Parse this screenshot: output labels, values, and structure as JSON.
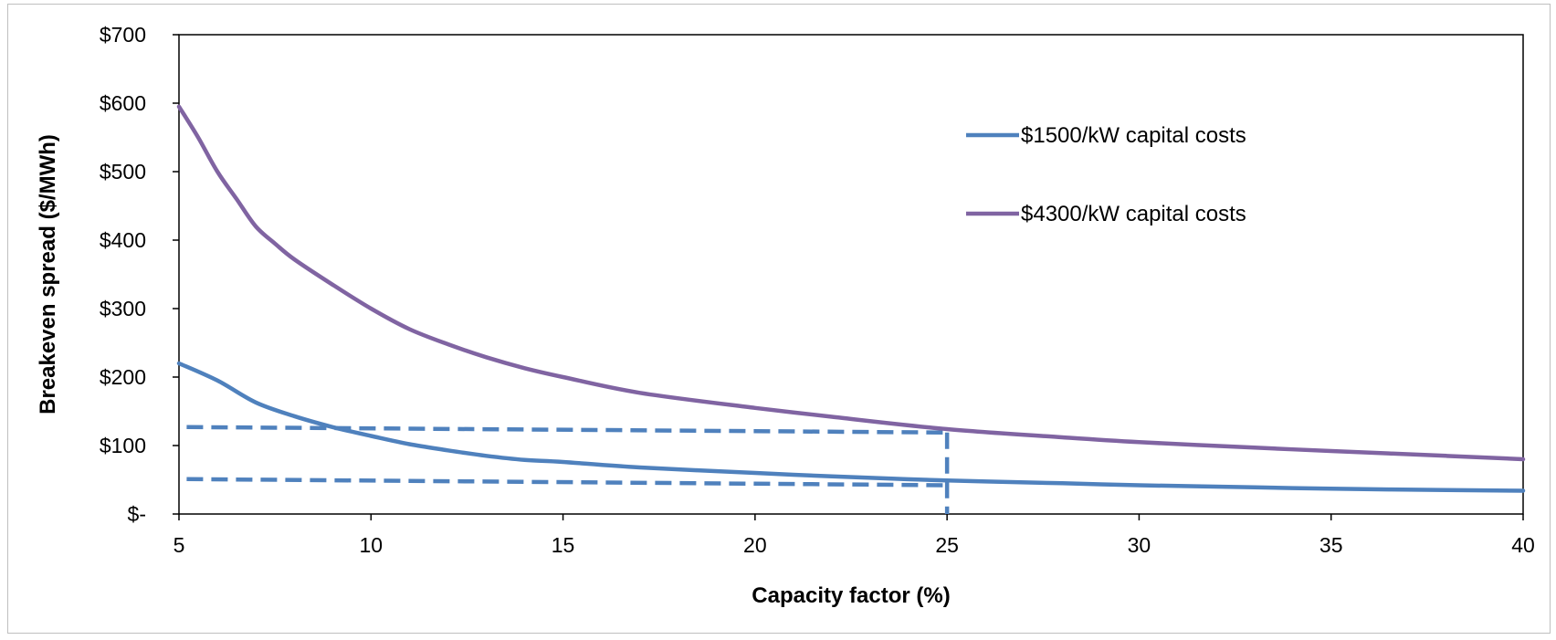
{
  "chart_data": {
    "type": "line",
    "title": "",
    "xlabel": "Capacity factor (%)",
    "ylabel": "Breakeven spread ($/MWh)",
    "xlim": [
      5,
      40
    ],
    "ylim": [
      0,
      700
    ],
    "x_ticks": [
      5,
      10,
      15,
      20,
      25,
      30,
      35,
      40
    ],
    "y_ticks": [
      {
        "value": 0,
        "label": "$-"
      },
      {
        "value": 100,
        "label": "$100"
      },
      {
        "value": 200,
        "label": "$200"
      },
      {
        "value": 300,
        "label": "$300"
      },
      {
        "value": 400,
        "label": "$400"
      },
      {
        "value": 500,
        "label": "$500"
      },
      {
        "value": 600,
        "label": "$600"
      },
      {
        "value": 700,
        "label": "$700"
      }
    ],
    "grid": false,
    "legend_position": "top-right",
    "series": [
      {
        "name": "$1500/kW capital costs",
        "color": "#4f81bd",
        "x": [
          5,
          6,
          7,
          8,
          9,
          10,
          11,
          12,
          13,
          14,
          15,
          17,
          20,
          22,
          25,
          28,
          30,
          33,
          35,
          38,
          40
        ],
        "y": [
          220,
          195,
          163,
          143,
          127,
          114,
          102,
          93,
          85,
          79,
          76,
          68,
          60,
          55,
          49,
          45,
          42,
          39,
          37,
          35,
          34
        ]
      },
      {
        "name": "$4300/kW capital costs",
        "color": "#8064a2",
        "x": [
          5,
          5.5,
          6,
          6.5,
          7,
          7.5,
          8,
          9,
          10,
          11,
          12,
          13,
          14,
          15,
          17,
          20,
          22,
          25,
          28,
          30,
          33,
          35,
          38,
          40
        ],
        "y": [
          595,
          550,
          500,
          460,
          420,
          395,
          372,
          335,
          300,
          270,
          248,
          229,
          213,
          200,
          177,
          155,
          142,
          124,
          112,
          105,
          97,
          92,
          85,
          80
        ]
      }
    ],
    "reference_lines": [
      {
        "color": "#4f81bd",
        "style": "dashed",
        "points": [
          [
            5.2,
            127
          ],
          [
            25,
            119
          ]
        ]
      },
      {
        "color": "#4f81bd",
        "style": "dashed",
        "points": [
          [
            5.2,
            51
          ],
          [
            25,
            42
          ]
        ]
      },
      {
        "color": "#4f81bd",
        "style": "dashed",
        "points": [
          [
            25,
            119
          ],
          [
            25,
            0
          ]
        ]
      }
    ]
  }
}
